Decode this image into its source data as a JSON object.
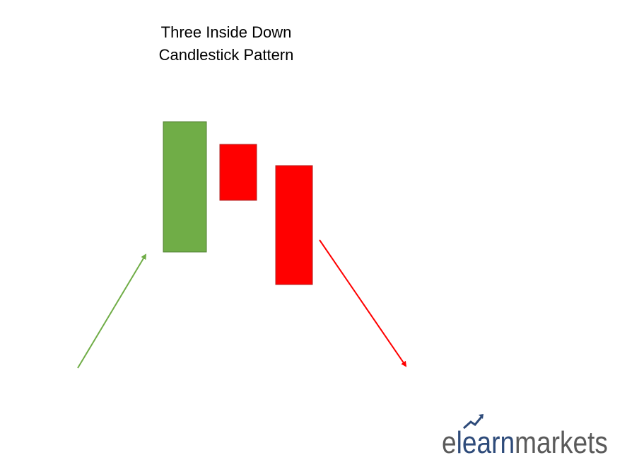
{
  "header": {
    "title_lines": [
      "Three Inside Down",
      "Candlestick Pattern"
    ]
  },
  "logo": {
    "parts": [
      "e",
      "learn",
      "markets"
    ]
  }
}
